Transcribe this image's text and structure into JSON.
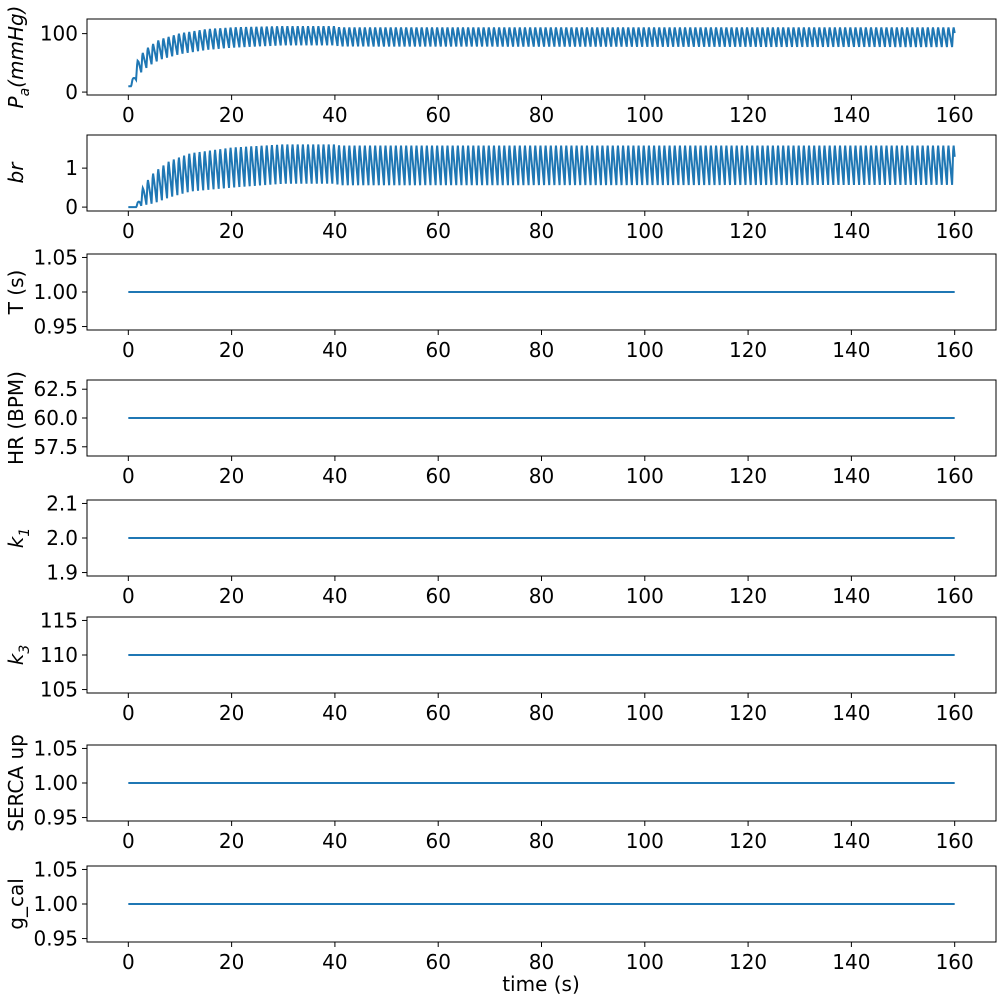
{
  "figure": {
    "xlabel": "time (s)"
  },
  "chart_data": [
    {
      "type": "line",
      "ylabel": "P_a(mmHg)",
      "ylabel_parts": {
        "main": "P",
        "sub": "a",
        "rest": "(mmHg)"
      },
      "xlim": [
        -8,
        168
      ],
      "ylim": [
        -5,
        125
      ],
      "xticks": [
        0,
        20,
        40,
        60,
        80,
        100,
        120,
        140,
        160
      ],
      "yticks": [
        0,
        100
      ],
      "color": "#1f77b4",
      "series": [
        {
          "kind": "oscillation",
          "t_start": 0,
          "t_end": 160,
          "cycle_s": 1.0,
          "t_onset": 0.5,
          "low_envelope": [
            [
              0.5,
              10
            ],
            [
              1,
              12
            ],
            [
              2,
              30
            ],
            [
              4,
              45
            ],
            [
              6,
              55
            ],
            [
              10,
              65
            ],
            [
              15,
              72
            ],
            [
              20,
              76
            ],
            [
              30,
              80
            ],
            [
              40,
              80
            ],
            [
              41,
              78
            ],
            [
              160,
              77
            ]
          ],
          "high_envelope": [
            [
              0.5,
              10
            ],
            [
              1,
              30
            ],
            [
              2,
              62
            ],
            [
              4,
              80
            ],
            [
              6,
              92
            ],
            [
              10,
              103
            ],
            [
              15,
              110
            ],
            [
              20,
              113
            ],
            [
              30,
              115
            ],
            [
              40,
              115
            ],
            [
              41,
              113
            ],
            [
              160,
              113
            ]
          ]
        }
      ]
    },
    {
      "type": "line",
      "ylabel": "br",
      "ylabel_parts": {
        "main": "br",
        "sub": "",
        "rest": ""
      },
      "xlim": [
        -8,
        168
      ],
      "ylim": [
        -0.1,
        1.85
      ],
      "xticks": [
        0,
        20,
        40,
        60,
        80,
        100,
        120,
        140,
        160
      ],
      "yticks": [
        0,
        1
      ],
      "color": "#1f77b4",
      "series": [
        {
          "kind": "oscillation",
          "t_start": 0,
          "t_end": 160,
          "cycle_s": 1.0,
          "t_onset": 1.5,
          "low_envelope": [
            [
              0,
              0
            ],
            [
              1.5,
              0
            ],
            [
              3,
              0.05
            ],
            [
              5,
              0.1
            ],
            [
              8,
              0.25
            ],
            [
              12,
              0.4
            ],
            [
              20,
              0.5
            ],
            [
              30,
              0.6
            ],
            [
              40,
              0.6
            ],
            [
              41,
              0.56
            ],
            [
              160,
              0.57
            ]
          ],
          "high_envelope": [
            [
              0,
              0
            ],
            [
              1.5,
              0
            ],
            [
              3,
              0.6
            ],
            [
              5,
              0.95
            ],
            [
              8,
              1.25
            ],
            [
              12,
              1.45
            ],
            [
              20,
              1.6
            ],
            [
              30,
              1.68
            ],
            [
              40,
              1.68
            ],
            [
              41,
              1.65
            ],
            [
              160,
              1.65
            ]
          ]
        }
      ]
    },
    {
      "type": "line",
      "ylabel": "T (s)",
      "ylabel_parts": {
        "main": "T (s)",
        "sub": "",
        "rest": ""
      },
      "xlim": [
        -8,
        168
      ],
      "ylim": [
        0.945,
        1.055
      ],
      "xticks": [
        0,
        20,
        40,
        60,
        80,
        100,
        120,
        140,
        160
      ],
      "yticks": [
        0.95,
        1.0,
        1.05
      ],
      "ytick_labels": [
        "0.95",
        "1.00",
        "1.05"
      ],
      "color": "#1f77b4",
      "series": [
        {
          "kind": "constant",
          "x": [
            0,
            160
          ],
          "y": [
            1.0,
            1.0
          ]
        }
      ]
    },
    {
      "type": "line",
      "ylabel": "HR (BPM)",
      "ylabel_parts": {
        "main": "HR (BPM)",
        "sub": "",
        "rest": ""
      },
      "xlim": [
        -8,
        168
      ],
      "ylim": [
        56.7,
        63.3
      ],
      "xticks": [
        0,
        20,
        40,
        60,
        80,
        100,
        120,
        140,
        160
      ],
      "yticks": [
        57.5,
        60.0,
        62.5
      ],
      "ytick_labels": [
        "57.5",
        "60.0",
        "62.5"
      ],
      "color": "#1f77b4",
      "series": [
        {
          "kind": "constant",
          "x": [
            0,
            160
          ],
          "y": [
            60.0,
            60.0
          ]
        }
      ]
    },
    {
      "type": "line",
      "ylabel": "k_1",
      "ylabel_parts": {
        "main": "k",
        "sub": "1",
        "rest": ""
      },
      "xlim": [
        -8,
        168
      ],
      "ylim": [
        1.89,
        2.11
      ],
      "xticks": [
        0,
        20,
        40,
        60,
        80,
        100,
        120,
        140,
        160
      ],
      "yticks": [
        1.9,
        2.0,
        2.1
      ],
      "ytick_labels": [
        "1.9",
        "2.0",
        "2.1"
      ],
      "color": "#1f77b4",
      "series": [
        {
          "kind": "constant",
          "x": [
            0,
            160
          ],
          "y": [
            2.0,
            2.0
          ]
        }
      ]
    },
    {
      "type": "line",
      "ylabel": "k_3",
      "ylabel_parts": {
        "main": "k",
        "sub": "3",
        "rest": ""
      },
      "xlim": [
        -8,
        168
      ],
      "ylim": [
        104.5,
        115.5
      ],
      "xticks": [
        0,
        20,
        40,
        60,
        80,
        100,
        120,
        140,
        160
      ],
      "yticks": [
        105,
        110,
        115
      ],
      "ytick_labels": [
        "105",
        "110",
        "115"
      ],
      "color": "#1f77b4",
      "series": [
        {
          "kind": "constant",
          "x": [
            0,
            160
          ],
          "y": [
            110,
            110
          ]
        }
      ]
    },
    {
      "type": "line",
      "ylabel": "SERCA up",
      "ylabel_parts": {
        "main": "SERCA up",
        "sub": "",
        "rest": ""
      },
      "xlim": [
        -8,
        168
      ],
      "ylim": [
        0.945,
        1.055
      ],
      "xticks": [
        0,
        20,
        40,
        60,
        80,
        100,
        120,
        140,
        160
      ],
      "yticks": [
        0.95,
        1.0,
        1.05
      ],
      "ytick_labels": [
        "0.95",
        "1.00",
        "1.05"
      ],
      "color": "#1f77b4",
      "series": [
        {
          "kind": "constant",
          "x": [
            0,
            160
          ],
          "y": [
            1.0,
            1.0
          ]
        }
      ]
    },
    {
      "type": "line",
      "ylabel": "g_cal",
      "ylabel_parts": {
        "main": "g_cal",
        "sub": "",
        "rest": ""
      },
      "xlim": [
        -8,
        168
      ],
      "ylim": [
        0.945,
        1.055
      ],
      "xticks": [
        0,
        20,
        40,
        60,
        80,
        100,
        120,
        140,
        160
      ],
      "yticks": [
        0.95,
        1.0,
        1.05
      ],
      "ytick_labels": [
        "0.95",
        "1.00",
        "1.05"
      ],
      "color": "#1f77b4",
      "series": [
        {
          "kind": "constant",
          "x": [
            0,
            160
          ],
          "y": [
            1.0,
            1.0
          ]
        }
      ]
    }
  ]
}
